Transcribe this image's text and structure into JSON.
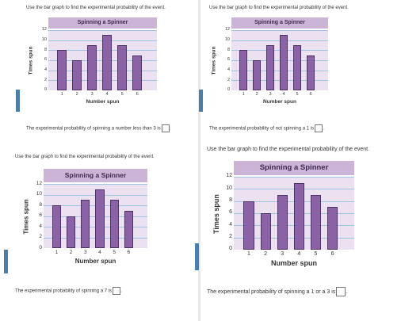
{
  "colors": {
    "bar": "#8c62a7",
    "title_band": "#cbb4d6",
    "plot_bg": "#ece1f1",
    "gridline": "#9ec4e0",
    "marker": "#4a7fab"
  },
  "panels": [
    {
      "instruction": "Use the bar graph to find the experimental probability of the event.",
      "question": "The experimental probability of spinning a number less than 3 is"
    },
    {
      "instruction": "Use the bar graph to find the experimental probability of the event.",
      "question": "The experimental probability of not spinning a 1 is"
    },
    {
      "instruction": "Use the bar graph to find the experimental probability of the event.",
      "question": "The experimental probability of spinning a 7 is"
    },
    {
      "instruction": "Use the bar graph to find the experimental probability of the event.",
      "question": "The experimental probability of spinning a 1 or a 3 is"
    }
  ],
  "chart_data": [
    {
      "type": "bar",
      "title": "Spinning a Spinner",
      "xlabel": "Number spun",
      "ylabel": "Times spun",
      "categories": [
        "1",
        "2",
        "3",
        "4",
        "5",
        "6"
      ],
      "values": [
        8,
        6,
        9,
        11,
        9,
        7
      ],
      "ylim": [
        0,
        12
      ],
      "yticks": [
        "0",
        "2",
        "4",
        "6",
        "8",
        "10",
        "12"
      ],
      "grid": true
    },
    {
      "type": "bar",
      "title": "Spinning a Spinner",
      "xlabel": "Number spun",
      "ylabel": "Times spun",
      "categories": [
        "1",
        "2",
        "3",
        "4",
        "5",
        "6"
      ],
      "values": [
        8,
        6,
        9,
        11,
        9,
        7
      ],
      "ylim": [
        0,
        12
      ],
      "yticks": [
        "0",
        "2",
        "4",
        "6",
        "8",
        "10",
        "12"
      ],
      "grid": true
    },
    {
      "type": "bar",
      "title": "Spinning a Spinner",
      "xlabel": "Number spun",
      "ylabel": "Times spun",
      "categories": [
        "1",
        "2",
        "3",
        "4",
        "5",
        "6"
      ],
      "values": [
        8,
        6,
        9,
        11,
        9,
        7
      ],
      "ylim": [
        0,
        12
      ],
      "yticks": [
        "0",
        "2",
        "4",
        "6",
        "8",
        "10",
        "12"
      ],
      "grid": true
    },
    {
      "type": "bar",
      "title": "Spinning a Spinner",
      "xlabel": "Number spun",
      "ylabel": "Times spun",
      "categories": [
        "1",
        "2",
        "3",
        "4",
        "5",
        "6"
      ],
      "values": [
        8,
        6,
        9,
        11,
        9,
        7
      ],
      "ylim": [
        0,
        12
      ],
      "yticks": [
        "0",
        "2",
        "4",
        "6",
        "8",
        "10",
        "12"
      ],
      "grid": true
    }
  ]
}
